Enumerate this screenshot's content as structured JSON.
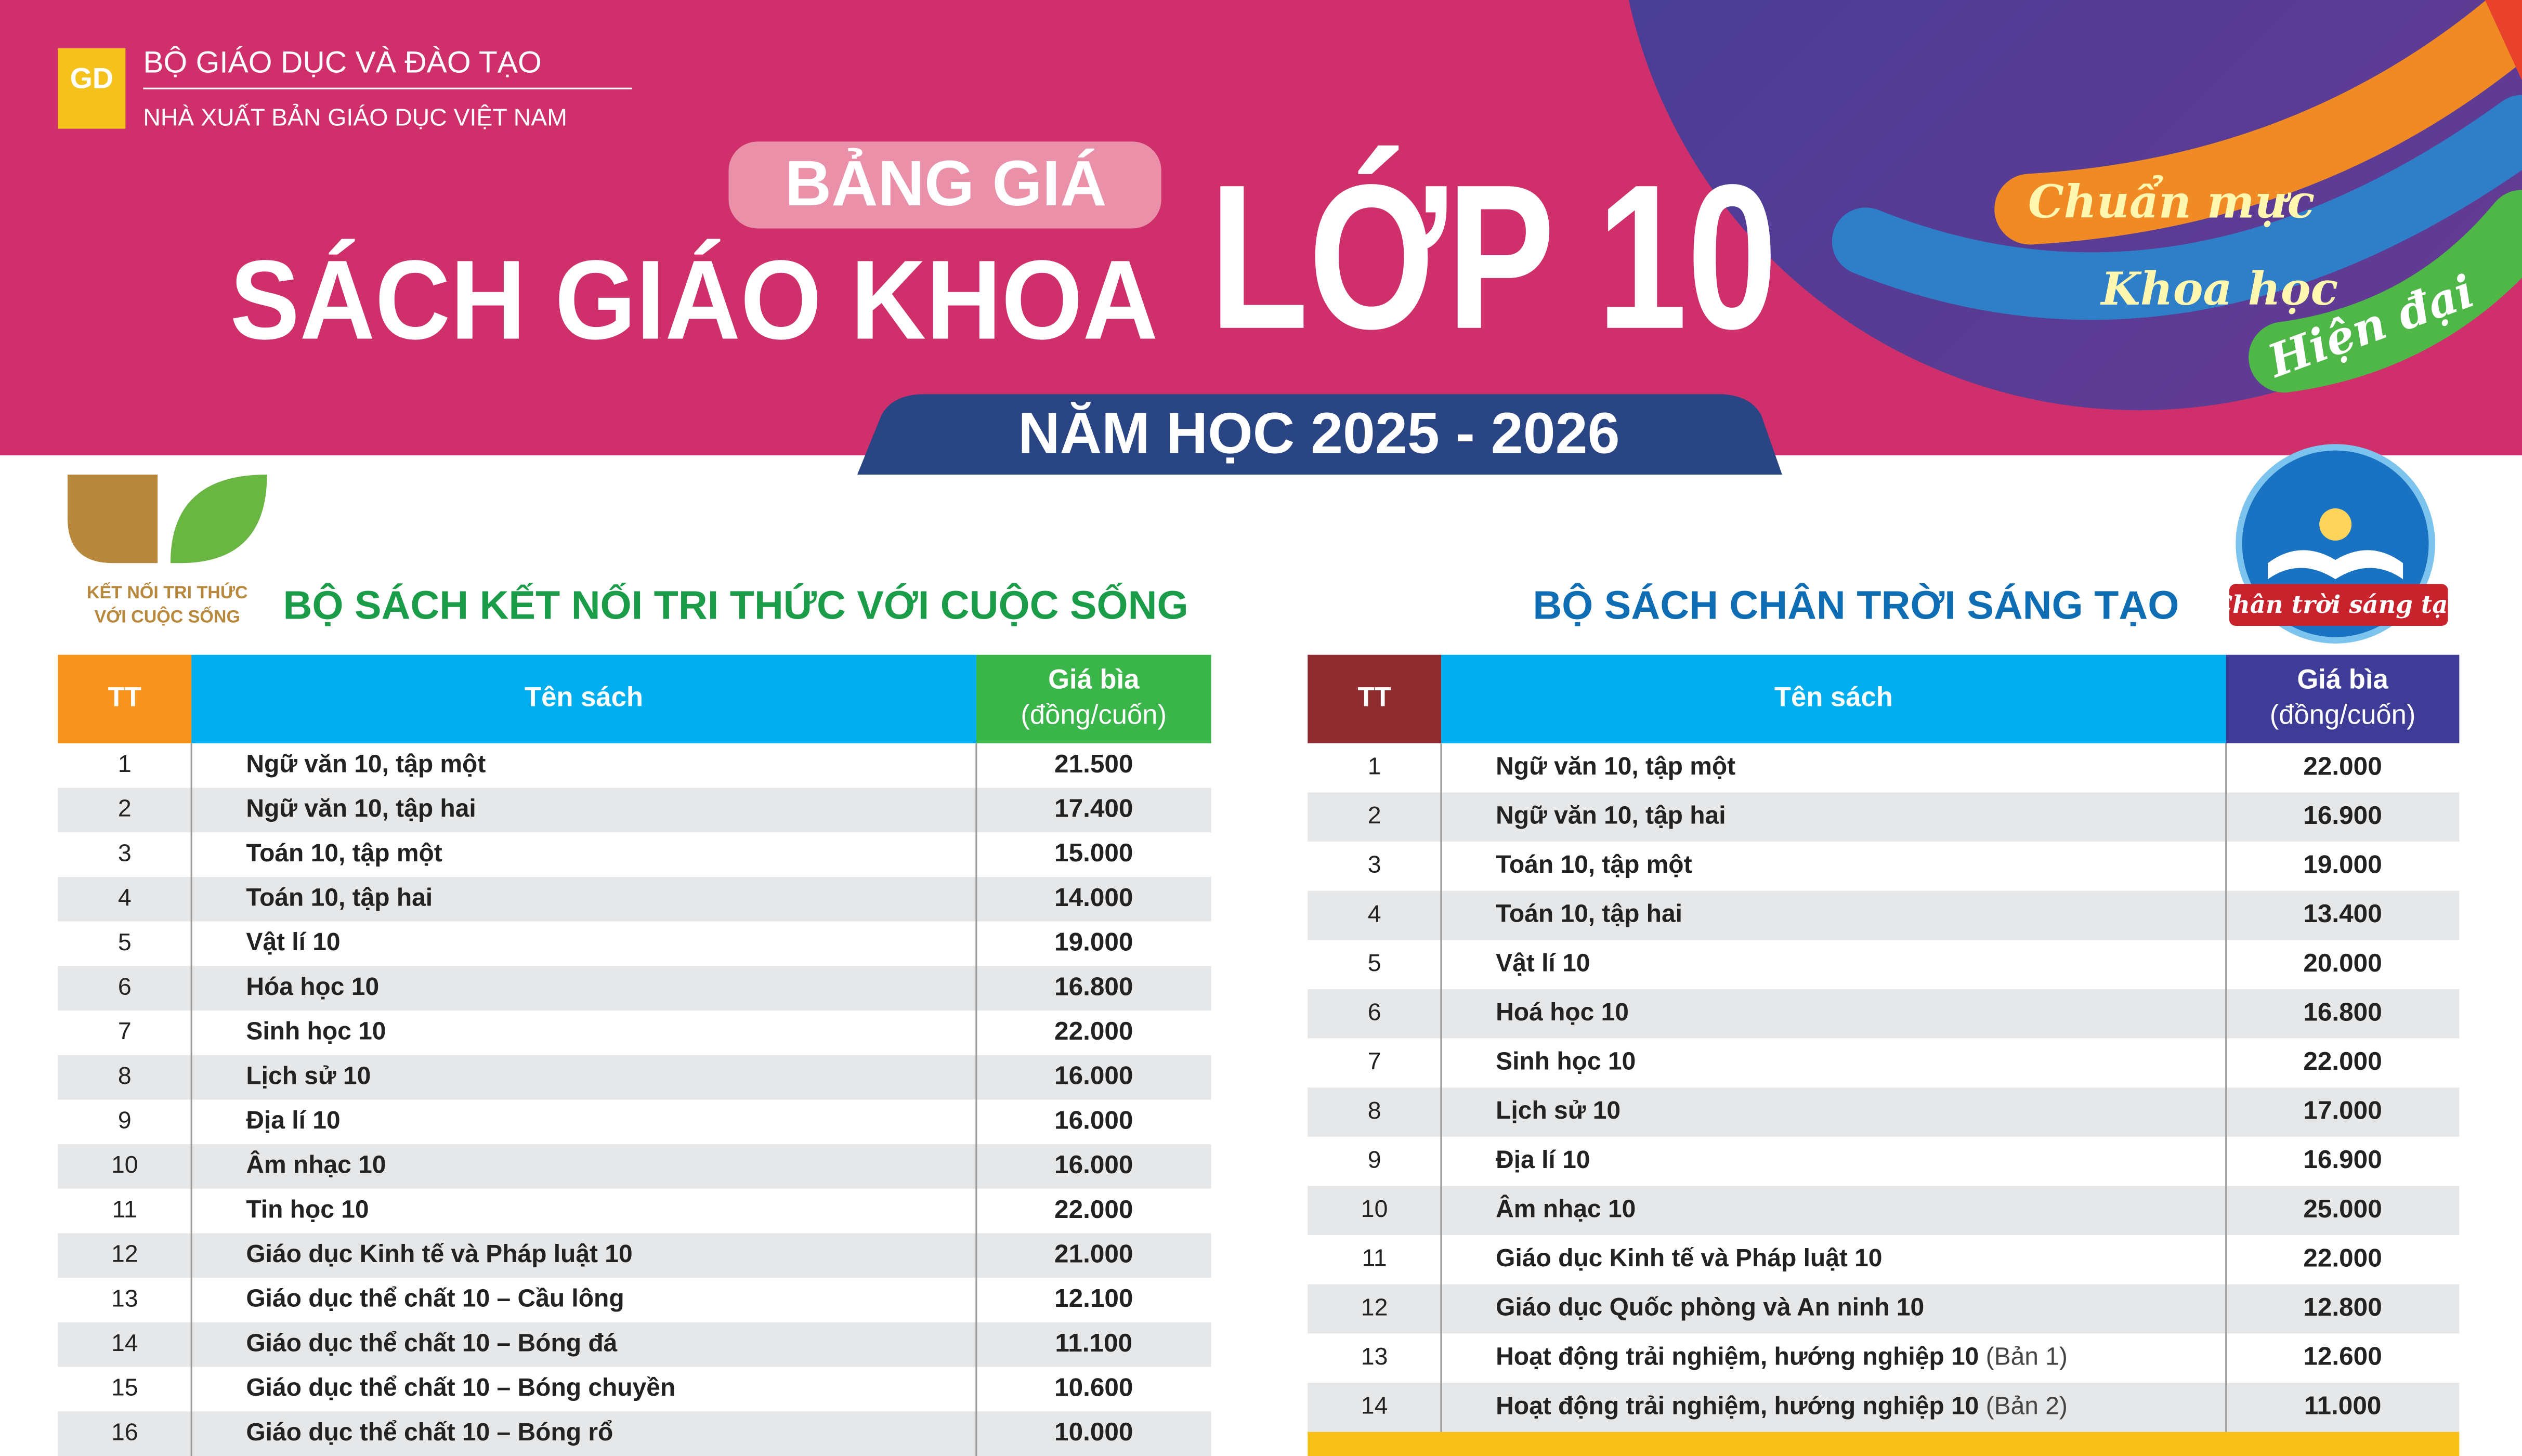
{
  "header": {
    "org": "BỘ GIÁO DỤC VÀ ĐÀO TẠO",
    "publisher": "NHÀ XUẤT BẢN GIÁO DỤC VIỆT NAM",
    "logo": "GD",
    "badge": "BẢNG GIÁ",
    "title": "SÁCH GIÁO KHOA",
    "grade": "LỚP 10",
    "year": "NĂM HỌC 2025 - 2026",
    "slogans": [
      "Chuẩn mực",
      "Khoa học",
      "Hiện đại"
    ]
  },
  "tables": [
    {
      "logo_lines": [
        "KẾT NỐI TRI THỨC",
        "VỚI CUỘC SỐNG"
      ],
      "title": "BỘ SÁCH KẾT NỐI TRI THỨC VỚI CUỘC SỐNG",
      "columns": {
        "tt": "TT",
        "name": "Tên sách",
        "price": "Giá bìa",
        "unit": "(đồng/cuốn)"
      },
      "rows": [
        {
          "tt": "1",
          "name": "Ngữ văn 10, tập một",
          "price": "21.500"
        },
        {
          "tt": "2",
          "name": "Ngữ văn 10, tập hai",
          "price": "17.400"
        },
        {
          "tt": "3",
          "name": "Toán 10, tập một",
          "price": "15.000"
        },
        {
          "tt": "4",
          "name": "Toán 10, tập hai",
          "price": "14.000"
        },
        {
          "tt": "5",
          "name": "Vật lí 10",
          "price": "19.000"
        },
        {
          "tt": "6",
          "name": "Hóa học 10",
          "price": "16.800"
        },
        {
          "tt": "7",
          "name": "Sinh học 10",
          "price": "22.000"
        },
        {
          "tt": "8",
          "name": "Lịch sử 10",
          "price": "16.000"
        },
        {
          "tt": "9",
          "name": "Địa lí 10",
          "price": "16.000"
        },
        {
          "tt": "10",
          "name": "Âm nhạc 10",
          "price": "16.000"
        },
        {
          "tt": "11",
          "name": "Tin học 10",
          "price": "22.000"
        },
        {
          "tt": "12",
          "name": "Giáo dục Kinh tế và Pháp luật 10",
          "price": "21.000"
        },
        {
          "tt": "13",
          "name": "Giáo dục thể chất 10 – Cầu lông",
          "price": "12.100"
        },
        {
          "tt": "14",
          "name": "Giáo dục thể chất 10 – Bóng đá",
          "price": "11.100"
        },
        {
          "tt": "15",
          "name": "Giáo dục thể chất 10 – Bóng chuyền",
          "price": "10.600"
        },
        {
          "tt": "16",
          "name": "Giáo dục thể chất 10 – Bóng rổ",
          "price": "10.000"
        }
      ]
    },
    {
      "logo_text": "Chân trời sáng tạo",
      "title": "BỘ SÁCH CHÂN TRỜI SÁNG TẠO",
      "columns": {
        "tt": "TT",
        "name": "Tên sách",
        "price": "Giá bìa",
        "unit": "(đồng/cuốn)"
      },
      "rows": [
        {
          "tt": "1",
          "name": "Ngữ văn 10, tập một",
          "price": "22.000"
        },
        {
          "tt": "2",
          "name": "Ngữ văn 10, tập hai",
          "price": "16.900"
        },
        {
          "tt": "3",
          "name": "Toán 10, tập một",
          "price": "19.000"
        },
        {
          "tt": "4",
          "name": "Toán 10, tập hai",
          "price": "13.400"
        },
        {
          "tt": "5",
          "name": "Vật lí 10",
          "price": "20.000"
        },
        {
          "tt": "6",
          "name": "Hoá học 10",
          "price": "16.800"
        },
        {
          "tt": "7",
          "name": "Sinh học 10",
          "price": "22.000"
        },
        {
          "tt": "8",
          "name": "Lịch sử 10",
          "price": "17.000"
        },
        {
          "tt": "9",
          "name": "Địa lí 10",
          "price": "16.900"
        },
        {
          "tt": "10",
          "name": "Âm nhạc 10",
          "price": "25.000"
        },
        {
          "tt": "11",
          "name": "Giáo dục Kinh tế và Pháp luật 10",
          "price": "22.000"
        },
        {
          "tt": "12",
          "name": "Giáo dục Quốc phòng và An ninh 10",
          "price": "12.800"
        },
        {
          "tt": "13",
          "name": "Hoạt động trải nghiệm, hướng nghiệp 10",
          "note": "(Bản 1)",
          "price": "12.600"
        },
        {
          "tt": "14",
          "name": "Hoạt động trải nghiệm, hướng nghiệp 10",
          "note": "(Bản 2)",
          "price": "11.000"
        }
      ]
    }
  ]
}
